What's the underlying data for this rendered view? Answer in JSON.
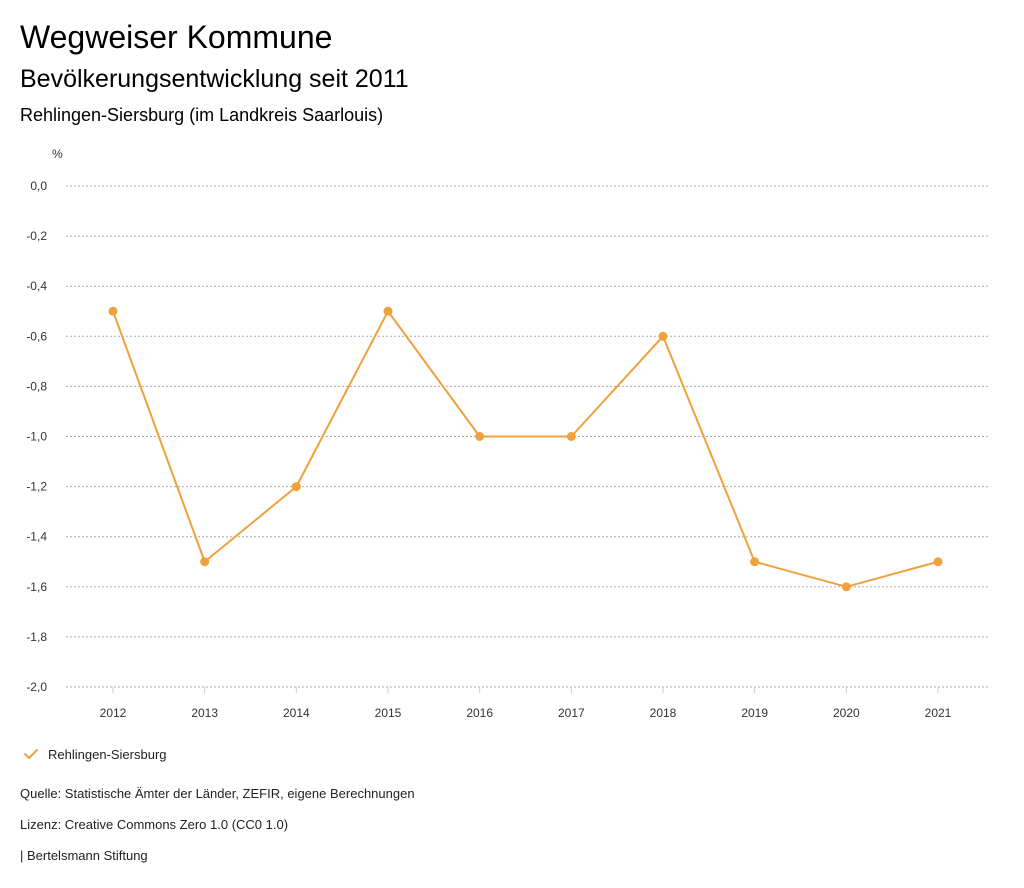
{
  "header": {
    "title": "Wegweiser Kommune",
    "subtitle": "Bevölkerungsentwicklung seit 2011",
    "region": "Rehlingen-Siersburg (im Landkreis Saarlouis)"
  },
  "chart_data": {
    "type": "line",
    "title": "Bevölkerungsentwicklung seit 2011",
    "ylabel": "%",
    "xlabel": "",
    "x": [
      "2012",
      "2013",
      "2014",
      "2015",
      "2016",
      "2017",
      "2018",
      "2019",
      "2020",
      "2021"
    ],
    "ylim": [
      -2.0,
      0.0
    ],
    "yticks": [
      0.0,
      -0.2,
      -0.4,
      -0.6,
      -0.8,
      -1.0,
      -1.2,
      -1.4,
      -1.6,
      -1.8,
      -2.0
    ],
    "ytick_labels": [
      "0,0",
      "-0,2",
      "-0,4",
      "-0,6",
      "-0,8",
      "-1,0",
      "-1,2",
      "-1,4",
      "-1,6",
      "-1,8",
      "-2,0"
    ],
    "grid": true,
    "legend_position": "bottom-left",
    "series": [
      {
        "name": "Rehlingen-Siersburg",
        "color": "#f0a03c",
        "values": [
          -0.5,
          -1.5,
          -1.2,
          -0.5,
          -1.0,
          -1.0,
          -0.6,
          -1.5,
          -1.6,
          -1.5
        ]
      }
    ]
  },
  "legend": {
    "label": "Rehlingen-Siersburg"
  },
  "footer": {
    "source": "Quelle: Statistische Ämter der Länder, ZEFIR, eigene Berechnungen",
    "license": "Lizenz: Creative Commons Zero 1.0 (CC0 1.0)",
    "brand": "| Bertelsmann Stiftung"
  }
}
